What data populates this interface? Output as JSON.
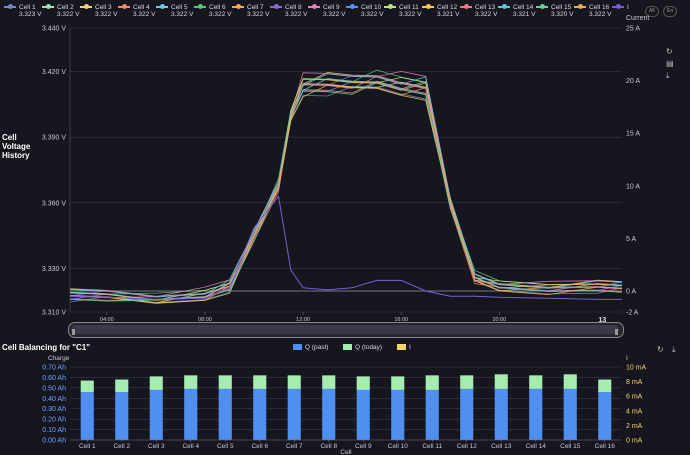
{
  "top_legend": {
    "cells": [
      {
        "name": "Cell 1",
        "voltage": "3.323 V",
        "color": "#6c8ebf"
      },
      {
        "name": "Cell 2",
        "voltage": "3.322 V",
        "color": "#9be3a6"
      },
      {
        "name": "Cell 3",
        "voltage": "3.322 V",
        "color": "#f3d36b"
      },
      {
        "name": "Cell 4",
        "voltage": "3.322 V",
        "color": "#f08a6b"
      },
      {
        "name": "Cell 5",
        "voltage": "3.322 V",
        "color": "#74c7e8"
      },
      {
        "name": "Cell 6",
        "voltage": "3.322 V",
        "color": "#5ec27a"
      },
      {
        "name": "Cell 7",
        "voltage": "3.322 V",
        "color": "#f7a85e"
      },
      {
        "name": "Cell 8",
        "voltage": "3.322 V",
        "color": "#8e6ad8"
      },
      {
        "name": "Cell 9",
        "voltage": "3.322 V",
        "color": "#e57fc3"
      },
      {
        "name": "Cell 10",
        "voltage": "3.322 V",
        "color": "#5b8ff9"
      },
      {
        "name": "Cell 11",
        "voltage": "3.322 V",
        "color": "#b9e878"
      },
      {
        "name": "Cell 12",
        "voltage": "3.321 V",
        "color": "#f5c453"
      },
      {
        "name": "Cell 13",
        "voltage": "3.322 V",
        "color": "#ef7a7a"
      },
      {
        "name": "Cell 14",
        "voltage": "3.321 V",
        "color": "#5fc6d9"
      },
      {
        "name": "Cell 15",
        "voltage": "3.320 V",
        "color": "#6fcf97"
      },
      {
        "name": "Cell 16",
        "voltage": "3.322 V",
        "color": "#f2a65a"
      },
      {
        "name": "I",
        "voltage": "",
        "color": "#7a5cd6"
      }
    ],
    "pill_all": "All",
    "pill_none": "En"
  },
  "voltage_panel": {
    "label_line1": "Cell",
    "label_line2": "Voltage",
    "label_line3": "History",
    "right_axis_title": "Current",
    "y_ticks": [
      "3.440 V",
      "3.420 V",
      "3.390 V",
      "3.360 V",
      "3.330 V",
      "3.310 V"
    ],
    "current_ticks": [
      "25 A",
      "20 A",
      "15 A",
      "10 A",
      "5 A",
      "0 A",
      "-2 A"
    ],
    "x_ticks": [
      "04:00",
      "08:00",
      "12:00",
      "16:00",
      "20:00"
    ],
    "x_day_label": "13"
  },
  "balancing_panel": {
    "title": "Cell Balancing for \"C1\"",
    "left_axis_title": "Charge",
    "right_axis_title": "I",
    "x_axis_title": "Cell",
    "legend": [
      {
        "label": "Q (past)",
        "color": "#4f8ff0"
      },
      {
        "label": "Q (today)",
        "color": "#a6ecb0"
      },
      {
        "label": "I",
        "color": "#f3d36b"
      }
    ],
    "y_ticks": [
      "0.70 Ah",
      "0.60 Ah",
      "0.50 Ah",
      "0.40 Ah",
      "0.30 Ah",
      "0.20 Ah",
      "0.10 Ah",
      "0.00 Ah"
    ],
    "current_ticks": [
      "10 mA",
      "8 mA",
      "6 mA",
      "4 mA",
      "2 mA",
      "0 mA"
    ]
  },
  "chart_data": [
    {
      "type": "line",
      "title": "Cell Voltage History",
      "ylabel": "",
      "y2label": "Current",
      "ylim": [
        3.31,
        3.44
      ],
      "y2lim": [
        -2,
        25
      ],
      "x": [
        "02:30",
        "04:00",
        "06:00",
        "08:00",
        "09:00",
        "10:00",
        "11:00",
        "11:30",
        "12:00",
        "13:00",
        "14:00",
        "15:00",
        "16:00",
        "17:00",
        "18:00",
        "19:00",
        "20:00",
        "22:00",
        "24:00",
        "01:00"
      ],
      "series_group_note": "",
      "voltage_mean": [
        3.318,
        3.318,
        3.316,
        3.318,
        3.322,
        3.345,
        3.368,
        3.4,
        3.414,
        3.415,
        3.415,
        3.416,
        3.414,
        3.413,
        3.36,
        3.326,
        3.322,
        3.321,
        3.322,
        3.322
      ],
      "current": [
        -0.5,
        -0.6,
        -0.8,
        -0.7,
        0.3,
        6,
        9,
        2,
        0.3,
        0.1,
        0.3,
        1,
        1,
        0,
        -0.5,
        -0.5,
        -0.6,
        -0.7,
        -0.8,
        -0.8
      ]
    },
    {
      "type": "bar",
      "title": "Cell Balancing for \"C1\"",
      "xlabel": "Cell",
      "ylabel": "Charge",
      "y2label": "I",
      "ylim": [
        0,
        0.7
      ],
      "y2lim": [
        0,
        10
      ],
      "categories": [
        "Cell 1",
        "Cell 2",
        "Cell 3",
        "Cell 4",
        "Cell 5",
        "Cell 6",
        "Cell 7",
        "Cell 8",
        "Cell 9",
        "Cell 10",
        "Cell 11",
        "Cell 12",
        "Cell 13",
        "Cell 14",
        "Cell 15",
        "Cell 16"
      ],
      "series": [
        {
          "name": "Q (past)",
          "values": [
            0.46,
            0.46,
            0.48,
            0.49,
            0.49,
            0.49,
            0.49,
            0.49,
            0.48,
            0.48,
            0.48,
            0.49,
            0.49,
            0.49,
            0.49,
            0.46
          ]
        },
        {
          "name": "Q (today)",
          "values": [
            0.11,
            0.12,
            0.13,
            0.13,
            0.13,
            0.13,
            0.13,
            0.13,
            0.13,
            0.13,
            0.14,
            0.13,
            0.14,
            0.13,
            0.14,
            0.12
          ]
        }
      ]
    }
  ]
}
